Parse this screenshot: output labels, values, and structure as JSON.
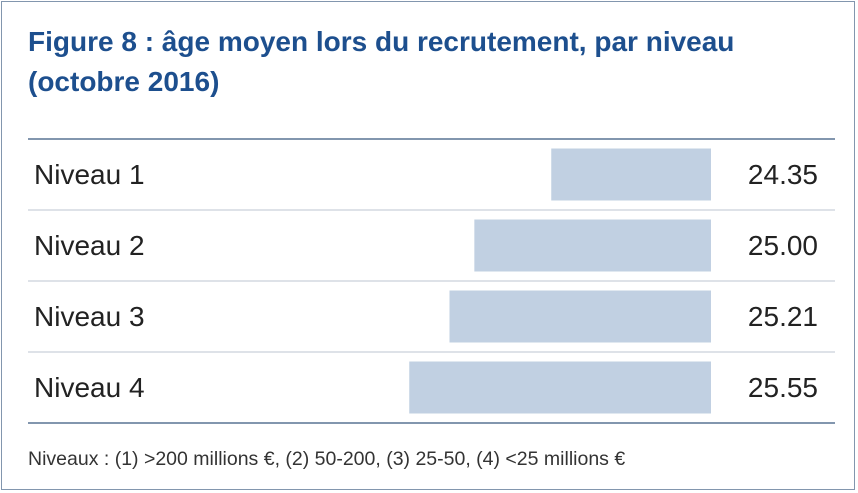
{
  "chart_data": {
    "type": "bar",
    "orientation": "horizontal",
    "title": "Figure 8 : âge moyen lors du recrutement, par niveau (octobre 2016)",
    "categories": [
      "Niveau 1",
      "Niveau 2",
      "Niveau 3",
      "Niveau 4"
    ],
    "values": [
      24.35,
      25.0,
      25.21,
      25.55
    ],
    "value_labels": [
      "24.35",
      "25.00",
      "25.21",
      "25.55"
    ],
    "color": "#c1d0e2",
    "xlim": [
      23,
      25.7
    ],
    "footnote": "Niveaux : (1) >200 millions €, (2) 50-200, (3) 25-50, (4) <25 millions €"
  }
}
